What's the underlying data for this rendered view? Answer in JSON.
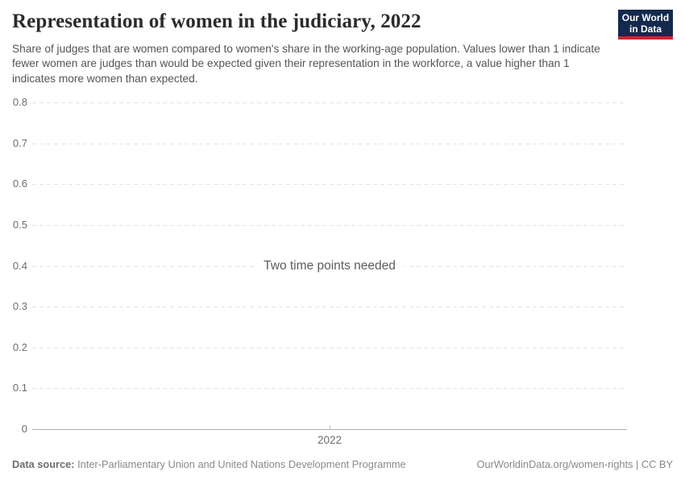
{
  "header": {
    "title": "Representation of women in the judiciary, 2022",
    "subtitle": "Share of judges that are women compared to women's share in the working-age population. Values lower than 1 indicate fewer women are judges than would be expected given their representation in the workforce, a value higher than 1 indicates more women than expected."
  },
  "logo": {
    "line1": "Our World",
    "line2": "in Data",
    "bg_color": "#13294d",
    "accent_color": "#cc2631"
  },
  "chart_data": {
    "type": "line",
    "title": "Representation of women in the judiciary, 2022",
    "series": [],
    "values": [],
    "empty_message": "Two time points needed",
    "empty_message_y": 0.4,
    "xlabel": "",
    "ylabel": "",
    "x_ticks": [
      {
        "value": 2022,
        "label": "2022"
      }
    ],
    "y_ticks": [
      {
        "value": 0,
        "label": "0"
      },
      {
        "value": 0.1,
        "label": "0.1"
      },
      {
        "value": 0.2,
        "label": "0.2"
      },
      {
        "value": 0.3,
        "label": "0.3"
      },
      {
        "value": 0.4,
        "label": "0.4"
      },
      {
        "value": 0.5,
        "label": "0.5"
      },
      {
        "value": 0.6,
        "label": "0.6"
      },
      {
        "value": 0.7,
        "label": "0.7"
      },
      {
        "value": 0.8,
        "label": "0.8"
      }
    ],
    "ylim": [
      0,
      0.8
    ],
    "grid": "horizontal-dashed",
    "grid_color": "#e3e3e3",
    "baseline_color": "#adadad",
    "tick_label_color": "#6e6e6e",
    "legend": "none"
  },
  "footer": {
    "source_label": "Data source:",
    "source_value": " Inter-Parliamentary Union and United Nations Development Programme",
    "attribution": "OurWorldinData.org/women-rights | CC BY"
  }
}
